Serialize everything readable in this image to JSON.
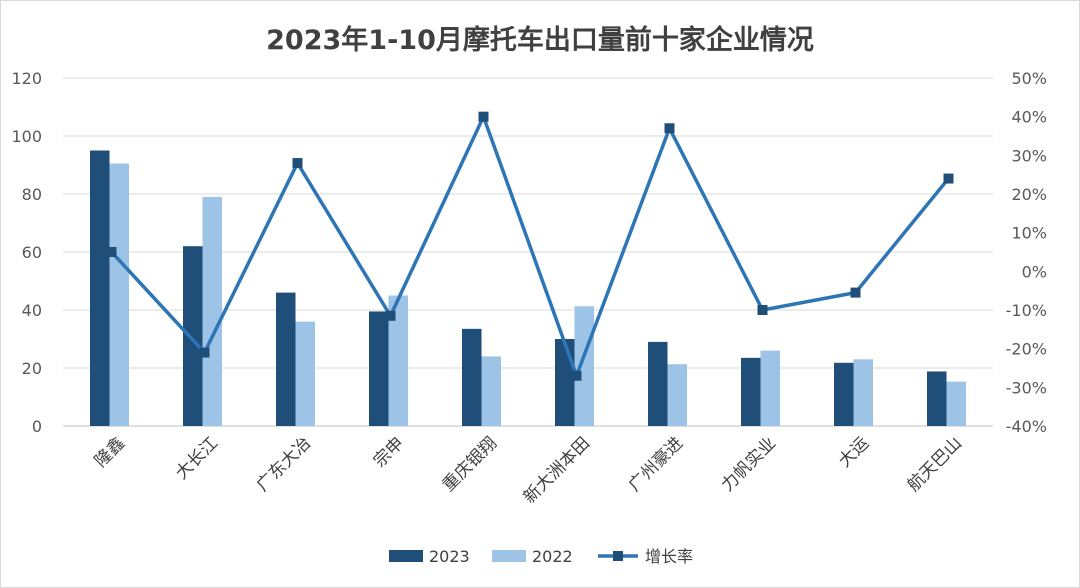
{
  "chart_data": {
    "type": "bar",
    "title": "2023年1-10月摩托车出口量前十家企业情况",
    "categories": [
      "隆鑫",
      "大长江",
      "广东大冶",
      "宗申",
      "重庆银翔",
      "新大洲本田",
      "广州豪进",
      "力帆实业",
      "大运",
      "航天巴山"
    ],
    "series": [
      {
        "name": "2023",
        "type": "bar",
        "axis": "left",
        "color": "#1f4e79",
        "values": [
          95,
          62,
          46,
          39.5,
          33.5,
          30,
          29,
          23.5,
          21.8,
          18.8
        ]
      },
      {
        "name": "2022",
        "type": "bar",
        "axis": "left",
        "color": "#9dc3e6",
        "values": [
          90.5,
          79,
          36,
          45,
          24,
          41.3,
          21.3,
          26,
          23,
          15.3
        ]
      },
      {
        "name": "增长率",
        "type": "line",
        "axis": "right",
        "color": "#2e75b6",
        "values": [
          5,
          -21,
          28,
          -11.5,
          40,
          -27,
          37,
          -10,
          -5.5,
          24
        ]
      }
    ],
    "y_left": {
      "min": 0,
      "max": 120,
      "ticks": [
        "0",
        "20",
        "40",
        "60",
        "80",
        "100",
        "120"
      ]
    },
    "y_right": {
      "min": -40,
      "max": 50,
      "ticks": [
        "-40%",
        "-30%",
        "-20%",
        "-10%",
        "0%",
        "10%",
        "20%",
        "30%",
        "40%",
        "50%"
      ]
    },
    "grid": true,
    "legend_position": "bottom"
  }
}
